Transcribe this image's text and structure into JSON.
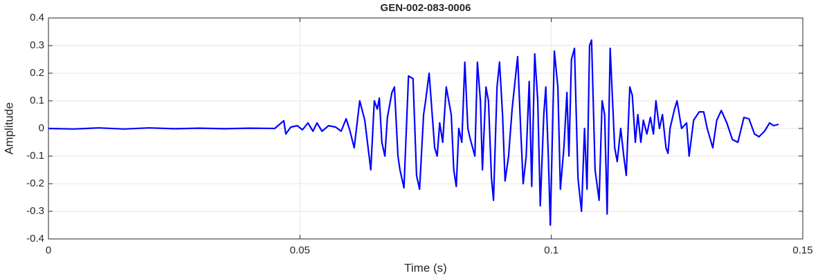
{
  "chart_data": {
    "type": "line",
    "title": "GEN-002-083-0006",
    "xlabel": "Time (s)",
    "ylabel": "Amplitude",
    "color": "#0000ff",
    "grid": true,
    "xlim": [
      0,
      0.15
    ],
    "ylim": [
      -0.4,
      0.4
    ],
    "xticks": [
      0,
      0.05,
      0.1,
      0.15
    ],
    "yticks": [
      -0.4,
      -0.3,
      -0.2,
      -0.1,
      0,
      0.1,
      0.2,
      0.3,
      0.4
    ],
    "x": [
      0,
      0.005,
      0.01,
      0.015,
      0.02,
      0.025,
      0.03,
      0.035,
      0.04,
      0.045,
      0.0468,
      0.0472,
      0.0482,
      0.0495,
      0.0505,
      0.0516,
      0.0526,
      0.0534,
      0.0544,
      0.0557,
      0.0571,
      0.0582,
      0.0592,
      0.0599,
      0.0608,
      0.0619,
      0.0629,
      0.0641,
      0.0648,
      0.0654,
      0.0658,
      0.0663,
      0.0669,
      0.0674,
      0.0683,
      0.0688,
      0.0695,
      0.0699,
      0.0707,
      0.0716,
      0.0725,
      0.0732,
      0.0738,
      0.0746,
      0.075,
      0.0757,
      0.0768,
      0.0773,
      0.0778,
      0.0784,
      0.0791,
      0.0801,
      0.0806,
      0.0811,
      0.0816,
      0.0822,
      0.0828,
      0.0834,
      0.0839,
      0.0848,
      0.0853,
      0.0859,
      0.0863,
      0.087,
      0.0875,
      0.0881,
      0.0885,
      0.0892,
      0.0897,
      0.0903,
      0.0908,
      0.0915,
      0.0922,
      0.0933,
      0.0939,
      0.0944,
      0.095,
      0.0956,
      0.0961,
      0.0967,
      0.0973,
      0.0978,
      0.0985,
      0.0989,
      0.0994,
      0.0998,
      0.1006,
      0.1013,
      0.1018,
      0.1025,
      0.1031,
      0.1035,
      0.104,
      0.1046,
      0.1053,
      0.106,
      0.1066,
      0.1071,
      0.1076,
      0.108,
      0.1087,
      0.1095,
      0.1101,
      0.1106,
      0.1111,
      0.1117,
      0.1126,
      0.1131,
      0.1138,
      0.1144,
      0.1149,
      0.1156,
      0.1161,
      0.1167,
      0.1172,
      0.1178,
      0.1183,
      0.119,
      0.1197,
      0.1203,
      0.1208,
      0.1215,
      0.1221,
      0.1228,
      0.1232,
      0.1236,
      0.1245,
      0.125,
      0.1259,
      0.1269,
      0.1274,
      0.1283,
      0.1294,
      0.1303,
      0.131,
      0.1321,
      0.1329,
      0.1338,
      0.1349,
      0.136,
      0.1371,
      0.1383,
      0.1393,
      0.1404,
      0.1413,
      0.1424,
      0.1434,
      0.1442,
      0.1452
    ],
    "values": [
      0,
      -0.002,
      0.002,
      -0.002,
      0.002,
      -0.001,
      0.001,
      -0.001,
      0.001,
      0,
      0.028,
      -0.02,
      0.005,
      0.01,
      -0.005,
      0.02,
      -0.01,
      0.02,
      -0.01,
      0.01,
      0.005,
      -0.01,
      0.035,
      -0.005,
      -0.07,
      0.1,
      0.03,
      -0.15,
      0.1,
      0.07,
      0.11,
      -0.05,
      -0.1,
      0.04,
      0.13,
      0.15,
      -0.1,
      -0.15,
      -0.215,
      0.19,
      0.18,
      -0.17,
      -0.22,
      0.05,
      0.1,
      0.2,
      -0.07,
      -0.1,
      0.02,
      -0.05,
      0.15,
      0.05,
      -0.15,
      -0.21,
      0,
      -0.05,
      0.24,
      0,
      -0.04,
      -0.1,
      0.24,
      0.1,
      -0.15,
      0.15,
      0.1,
      -0.18,
      -0.26,
      0.15,
      0.24,
      0.05,
      -0.19,
      -0.1,
      0.07,
      0.26,
      0,
      -0.2,
      -0.1,
      0.17,
      -0.21,
      0.27,
      0.1,
      -0.28,
      0.05,
      0.15,
      -0.1,
      -0.35,
      0.28,
      0.15,
      -0.22,
      -0.07,
      0.13,
      -0.1,
      0.25,
      0.29,
      -0.18,
      -0.3,
      0,
      -0.22,
      0.3,
      0.32,
      -0.15,
      -0.26,
      0.1,
      0.05,
      -0.31,
      0.29,
      -0.07,
      -0.12,
      0,
      -0.1,
      -0.17,
      0.15,
      0.12,
      -0.05,
      0.05,
      -0.05,
      0.03,
      -0.02,
      0.04,
      -0.02,
      0.1,
      0,
      0.05,
      -0.07,
      -0.09,
      0,
      0.07,
      0.1,
      0,
      0.02,
      -0.1,
      0.03,
      0.06,
      0.06,
      0,
      -0.07,
      0.03,
      0.065,
      0.02,
      -0.04,
      -0.05,
      0.04,
      0.035,
      -0.02,
      -0.03,
      -0.01,
      0.02,
      0.01,
      0.015
    ]
  }
}
